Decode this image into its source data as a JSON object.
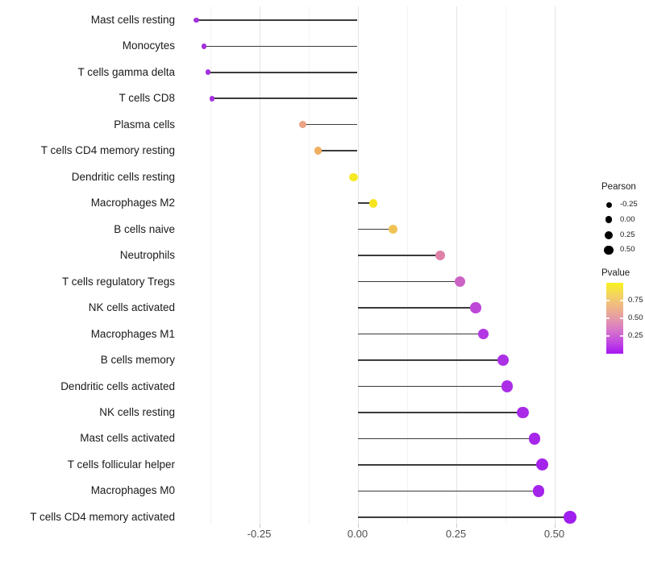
{
  "chart_data": {
    "type": "scatter",
    "variant": "horizontal-lollipop",
    "title": "",
    "xlabel": "",
    "ylabel": "",
    "grid": "vertical major and minor gridlines, very light gray, no axis lines",
    "legend_position": "right",
    "xlim": [
      -0.46,
      0.59
    ],
    "x_ticks": [
      {
        "label": "-0.25",
        "value": -0.25
      },
      {
        "label": "0.00",
        "value": 0.0
      },
      {
        "label": "0.25",
        "value": 0.25
      },
      {
        "label": "0.50",
        "value": 0.5
      }
    ],
    "x_minor_gridlines": [
      -0.375,
      -0.125,
      0.125,
      0.375
    ],
    "size_encoding": "Pearson correlation (larger = higher value)",
    "color_encoding": "Pvalue (yellow = high, purple = low)",
    "points": [
      {
        "category": "Mast cells resting",
        "pearson": -0.41,
        "color": "#A233DB"
      },
      {
        "category": "Monocytes",
        "pearson": -0.39,
        "color": "#A52FDB"
      },
      {
        "category": "T cells gamma delta",
        "pearson": -0.38,
        "color": "#A331DC"
      },
      {
        "category": "T cells CD8",
        "pearson": -0.37,
        "color": "#A42FDE"
      },
      {
        "category": "Plasma cells",
        "pearson": -0.14,
        "color": "#EBA287"
      },
      {
        "category": "T cells CD4 memory resting",
        "pearson": -0.1,
        "color": "#F0AE5F"
      },
      {
        "category": "Dendritic cells resting",
        "pearson": -0.01,
        "color": "#F5E926"
      },
      {
        "category": "Macrophages M2",
        "pearson": 0.04,
        "color": "#F6E41F"
      },
      {
        "category": "B cells naive",
        "pearson": 0.09,
        "color": "#EFC253"
      },
      {
        "category": "Neutrophils",
        "pearson": 0.21,
        "color": "#DE81A7"
      },
      {
        "category": "T cells regulatory  Tregs",
        "pearson": 0.26,
        "color": "#CC63C5"
      },
      {
        "category": "NK cells activated",
        "pearson": 0.3,
        "color": "#BD48D8"
      },
      {
        "category": "Macrophages M1",
        "pearson": 0.32,
        "color": "#B337E2"
      },
      {
        "category": "B cells memory",
        "pearson": 0.37,
        "color": "#AC30E5"
      },
      {
        "category": "Dendritic cells activated",
        "pearson": 0.38,
        "color": "#AB2EE6"
      },
      {
        "category": "NK cells resting",
        "pearson": 0.42,
        "color": "#A92BE8"
      },
      {
        "category": "Mast cells activated",
        "pearson": 0.45,
        "color": "#A627EA"
      },
      {
        "category": "T cells follicular helper",
        "pearson": 0.47,
        "color": "#A424EB"
      },
      {
        "category": "Macrophages M0",
        "pearson": 0.46,
        "color": "#A424EB"
      },
      {
        "category": "T cells CD4 memory activated",
        "pearson": 0.54,
        "color": "#A01FEE"
      }
    ]
  },
  "legend": {
    "size": {
      "title": "Pearson",
      "entries": [
        {
          "label": "-0.25",
          "value": -0.25
        },
        {
          "label": "0.00",
          "value": 0.0
        },
        {
          "label": "0.25",
          "value": 0.25
        },
        {
          "label": "0.50",
          "value": 0.5
        }
      ]
    },
    "color": {
      "title": "Pvalue",
      "tick_labels": [
        "0.75",
        "0.50",
        "0.25"
      ],
      "gradient_top_to_bottom": [
        "#F9F21C",
        "#F4D55F",
        "#EFB784",
        "#E59AA8",
        "#D776C9",
        "#C24BE0",
        "#A816F2"
      ]
    }
  }
}
